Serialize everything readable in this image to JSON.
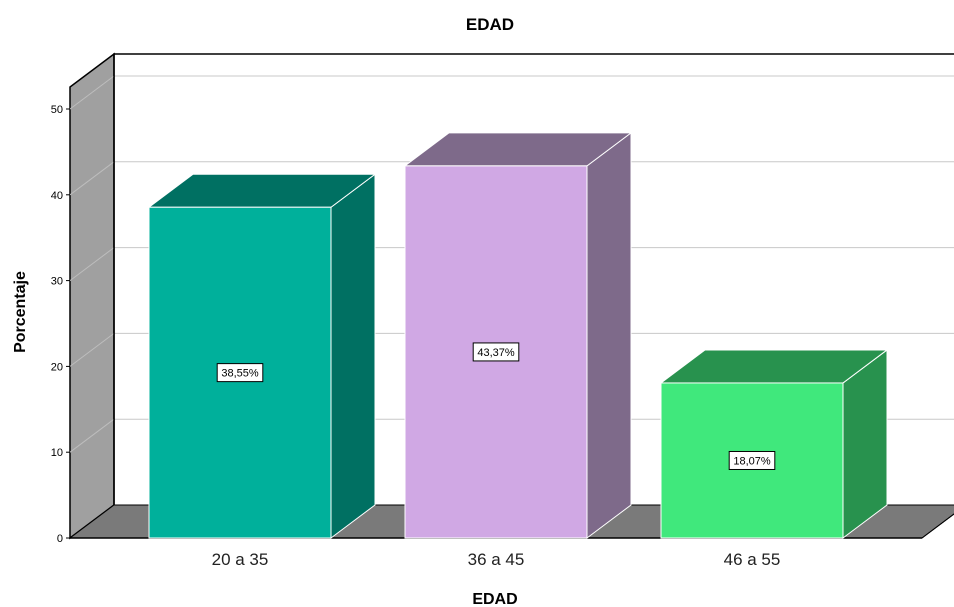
{
  "chart_data": {
    "type": "bar",
    "title": "EDAD",
    "xlabel": "EDAD",
    "ylabel": "Porcentaje",
    "categories": [
      "20 a 35",
      "36 a 45",
      "46 a 55"
    ],
    "values": [
      38.55,
      43.37,
      18.07
    ],
    "data_labels": [
      "38,55%",
      "43,37%",
      "18,07%"
    ],
    "yticks": [
      0,
      10,
      20,
      30,
      40,
      50
    ],
    "ylim": [
      0,
      50
    ],
    "grid": true,
    "style": "3d",
    "colors": [
      {
        "front": "#00b09b",
        "side": "#007062",
        "top": "#007062"
      },
      {
        "front": "#d0a8e4",
        "side": "#7e6a8a",
        "top": "#7e6a8a"
      },
      {
        "front": "#40e87c",
        "side": "#28924e",
        "top": "#28924e"
      }
    ],
    "wall_color": "#a0a0a0",
    "floor_color": "#7a7a7a"
  }
}
